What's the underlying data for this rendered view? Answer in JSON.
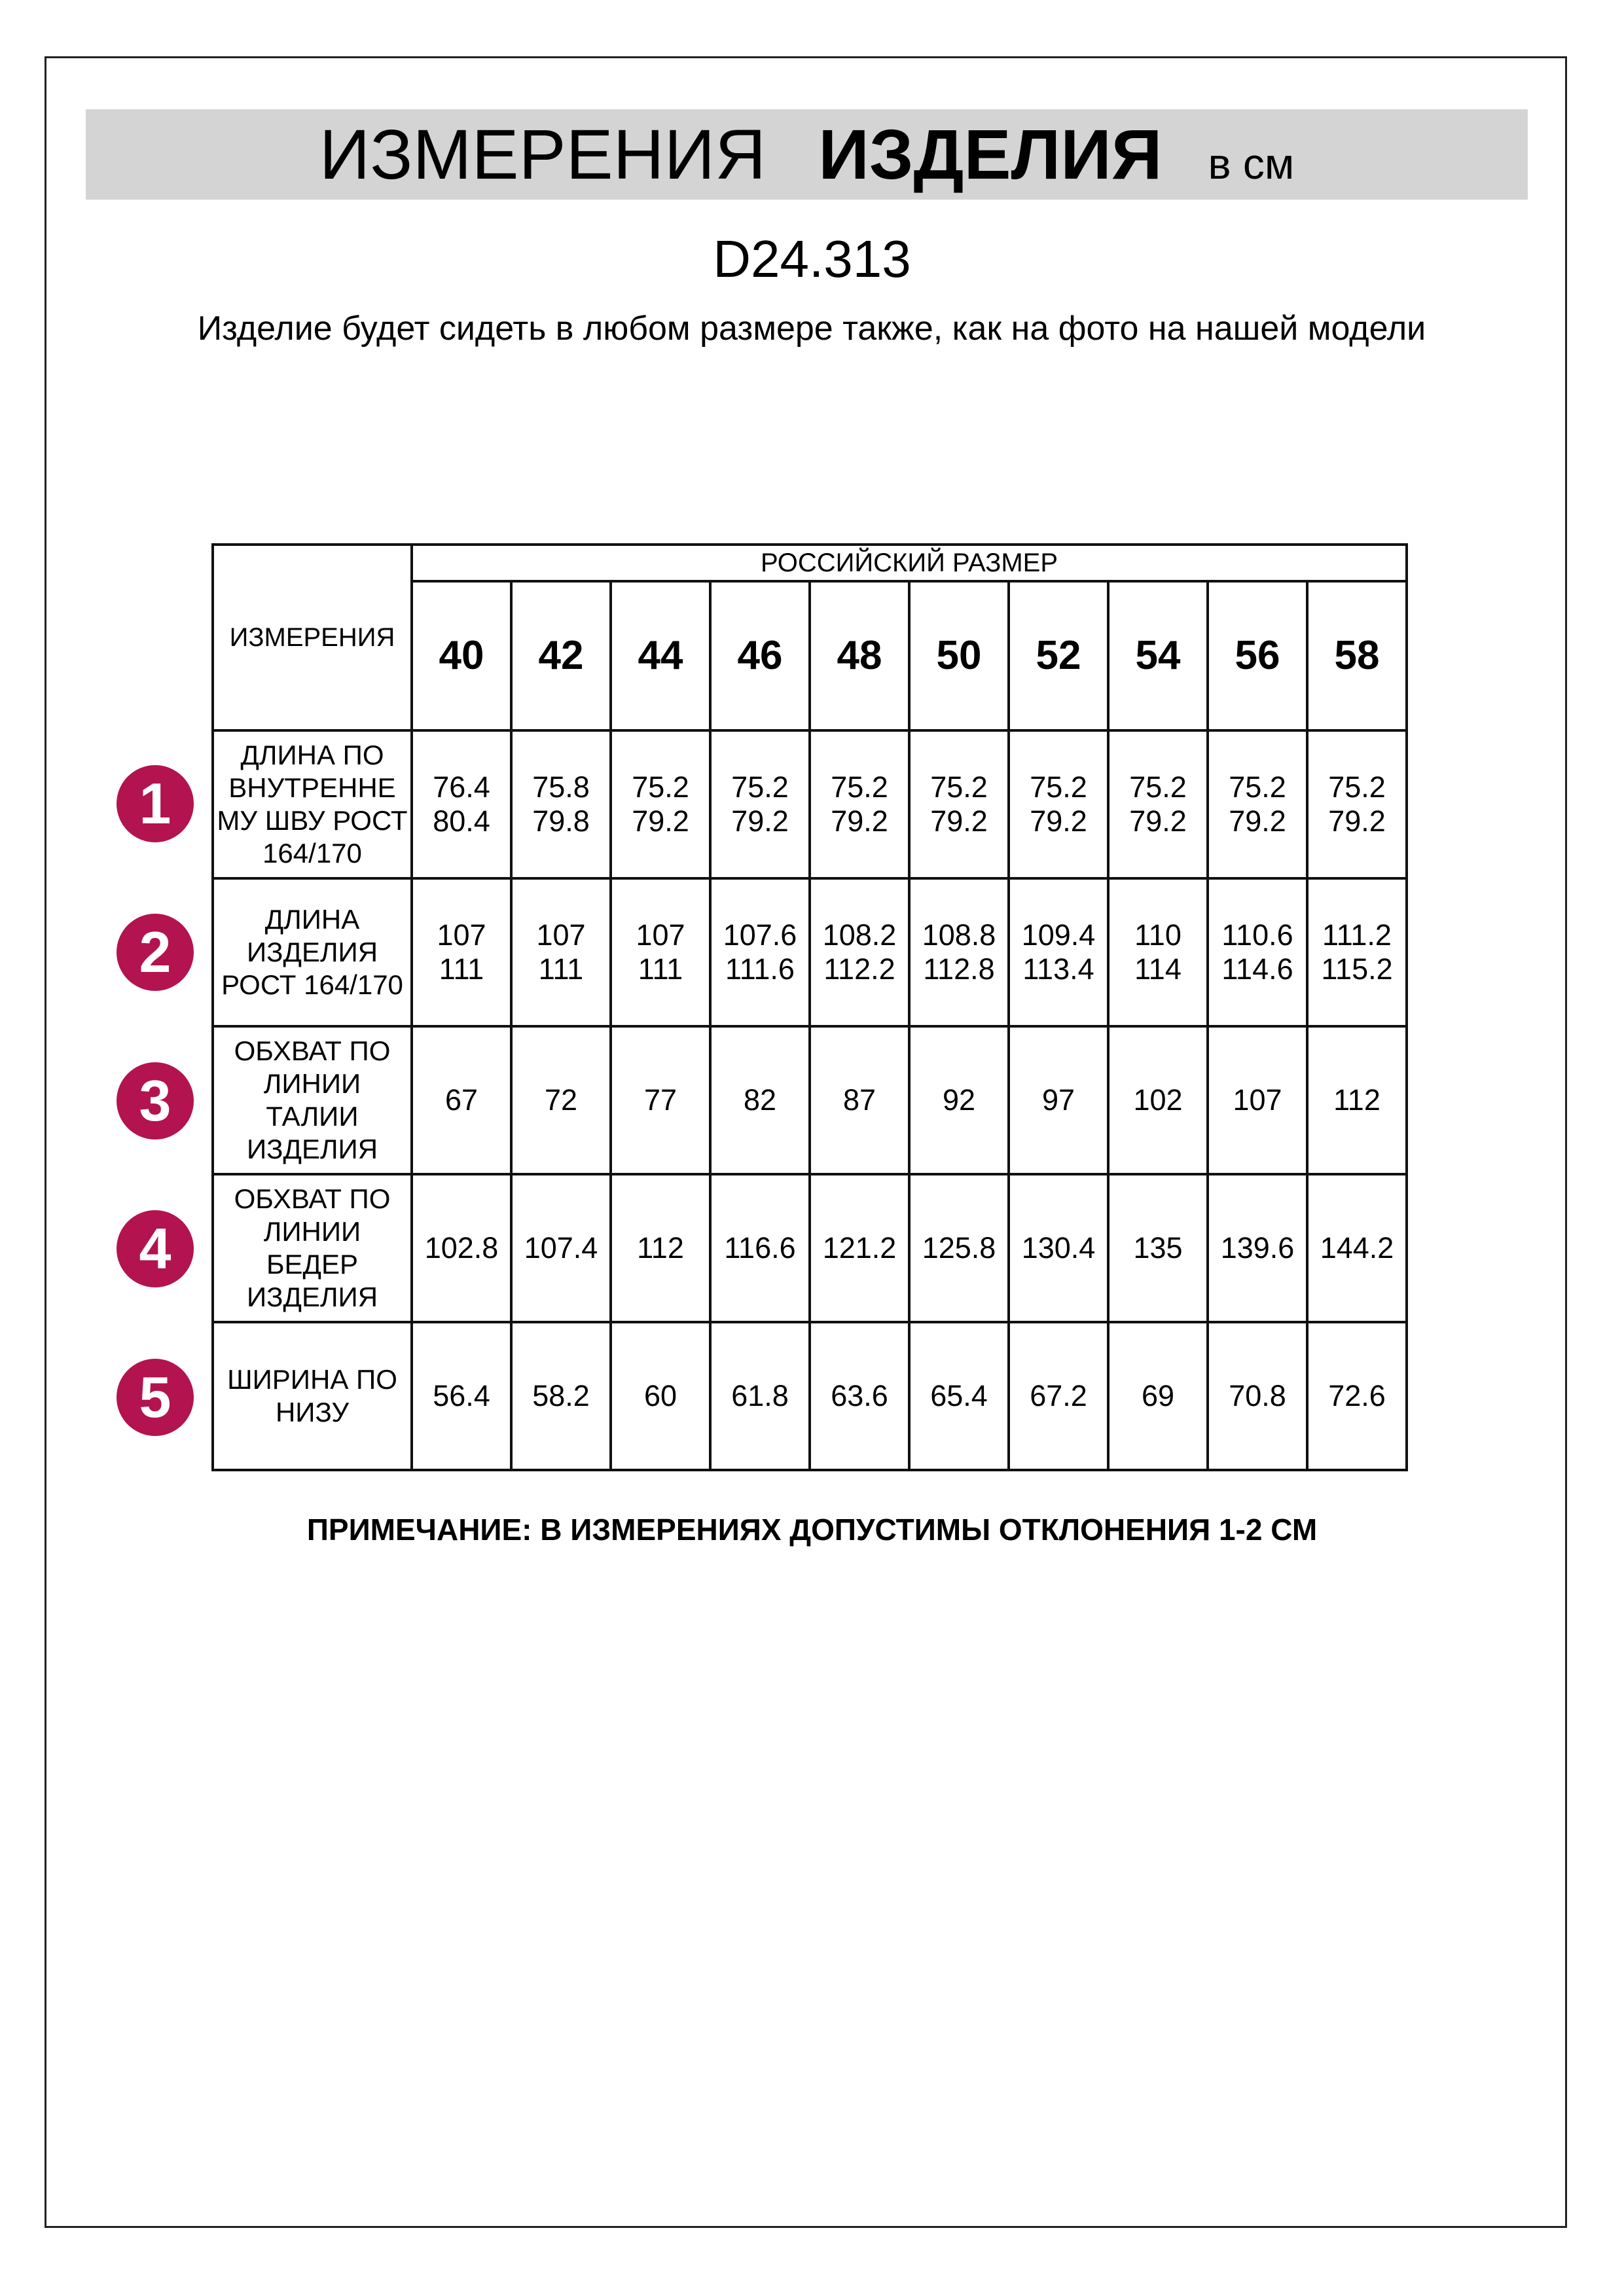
{
  "header": {
    "title_regular": "ИЗМЕРЕНИЯ",
    "title_bold": "ИЗДЕЛИЯ",
    "unit": "в см"
  },
  "article": "D24.313",
  "subtitle": "Изделие будет сидеть в любом размере также, как на фото на нашей модели",
  "accent_color": "#b3134f",
  "table": {
    "corner_label": "ИЗМЕРЕНИЯ",
    "group_label": "РОССИЙСКИЙ РАЗМЕР",
    "sizes": [
      "40",
      "42",
      "44",
      "46",
      "48",
      "50",
      "52",
      "54",
      "56",
      "58"
    ],
    "rows": [
      {
        "number": "1",
        "label": "ДЛИНА ПО ВНУТРЕННЕ МУ ШВУ РОСТ 164/170",
        "values": [
          "76.4\n80.4",
          "75.8\n79.8",
          "75.2\n79.2",
          "75.2\n79.2",
          "75.2\n79.2",
          "75.2\n79.2",
          "75.2\n79.2",
          "75.2\n79.2",
          "75.2\n79.2",
          "75.2\n79.2"
        ]
      },
      {
        "number": "2",
        "label": "ДЛИНА ИЗДЕЛИЯ РОСТ 164/170",
        "values": [
          "107\n111",
          "107\n111",
          "107\n111",
          "107.6\n111.6",
          "108.2\n112.2",
          "108.8\n112.8",
          "109.4\n113.4",
          "110\n114",
          "110.6\n114.6",
          "111.2\n115.2"
        ]
      },
      {
        "number": "3",
        "label": "ОБХВАТ ПО ЛИНИИ ТАЛИИ ИЗДЕЛИЯ",
        "values": [
          "67",
          "72",
          "77",
          "82",
          "87",
          "92",
          "97",
          "102",
          "107",
          "112"
        ]
      },
      {
        "number": "4",
        "label": "ОБХВАТ ПО ЛИНИИ БЕДЕР ИЗДЕЛИЯ",
        "values": [
          "102.8",
          "107.4",
          "112",
          "116.6",
          "121.2",
          "125.8",
          "130.4",
          "135",
          "139.6",
          "144.2"
        ]
      },
      {
        "number": "5",
        "label": "ШИРИНА ПО НИЗУ",
        "values": [
          "56.4",
          "58.2",
          "60",
          "61.8",
          "63.6",
          "65.4",
          "67.2",
          "69",
          "70.8",
          "72.6"
        ]
      }
    ]
  },
  "note": "ПРИМЕЧАНИЕ: В ИЗМЕРЕНИЯХ ДОПУСТИМЫ ОТКЛОНЕНИЯ 1-2 СМ"
}
